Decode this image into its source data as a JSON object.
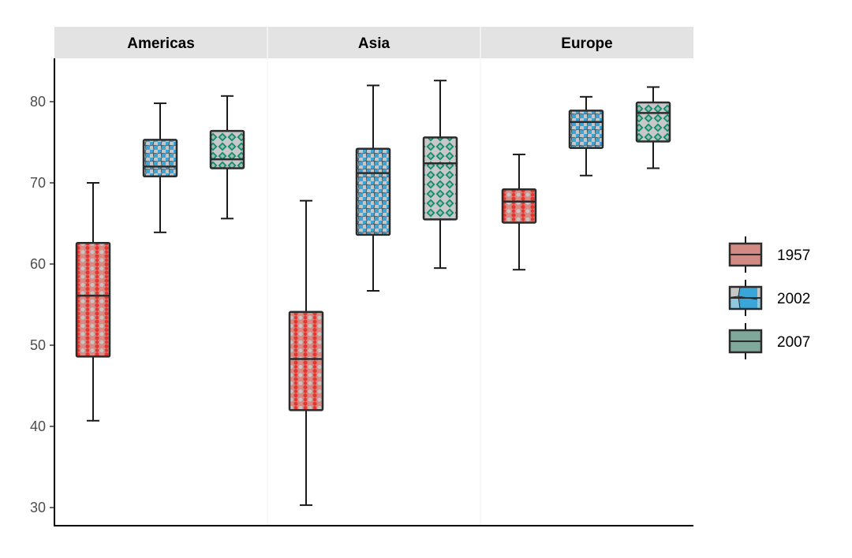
{
  "chart_data": {
    "type": "boxplot",
    "facets": [
      "Americas",
      "Asia",
      "Europe"
    ],
    "y_ticks": [
      30,
      40,
      50,
      60,
      70,
      80
    ],
    "ylim": [
      29,
      85
    ],
    "series": [
      {
        "name": "1957",
        "fill": "#d28a84",
        "pattern": "circles",
        "pattern_colors": [
          "#e8342e",
          "#c9c3c3",
          "#d28a84"
        ]
      },
      {
        "name": "2002",
        "fill": "#4ab0da",
        "pattern": "voronoi",
        "pattern_colors": [
          "#3aa5d8",
          "#c7c7c7",
          "#8ec8e0"
        ]
      },
      {
        "name": "2007",
        "fill": "#7fa79a",
        "pattern": "diamonds",
        "pattern_colors": [
          "#0f8b6c",
          "#9fbdb3",
          "#c8c8c8"
        ]
      }
    ],
    "boxes": [
      {
        "facet": "Americas",
        "series": "1957",
        "min": 40.7,
        "q1": 48.6,
        "median": 56.1,
        "q3": 62.6,
        "max": 70.0
      },
      {
        "facet": "Americas",
        "series": "2002",
        "min": 63.9,
        "q1": 70.8,
        "median": 72.0,
        "q3": 75.3,
        "max": 79.8
      },
      {
        "facet": "Americas",
        "series": "2007",
        "min": 65.6,
        "q1": 71.8,
        "median": 72.9,
        "q3": 76.4,
        "max": 80.7
      },
      {
        "facet": "Asia",
        "series": "1957",
        "min": 30.3,
        "q1": 42.0,
        "median": 48.3,
        "q3": 54.1,
        "max": 67.8
      },
      {
        "facet": "Asia",
        "series": "2002",
        "min": 56.7,
        "q1": 63.6,
        "median": 71.2,
        "q3": 74.2,
        "max": 82.0
      },
      {
        "facet": "Asia",
        "series": "2007",
        "min": 59.5,
        "q1": 65.5,
        "median": 72.4,
        "q3": 75.6,
        "max": 82.6
      },
      {
        "facet": "Europe",
        "series": "1957",
        "min": 59.3,
        "q1": 65.1,
        "median": 67.7,
        "q3": 69.2,
        "max": 73.5
      },
      {
        "facet": "Europe",
        "series": "2002",
        "min": 70.9,
        "q1": 74.3,
        "median": 77.5,
        "q3": 78.9,
        "max": 80.6
      },
      {
        "facet": "Europe",
        "series": "2007",
        "min": 71.8,
        "q1": 75.1,
        "median": 78.6,
        "q3": 79.9,
        "max": 81.8
      }
    ],
    "legend": {
      "position": "right",
      "entries": [
        "1957",
        "2002",
        "2007"
      ]
    },
    "grid": false,
    "xlabel": "",
    "ylabel": ""
  }
}
